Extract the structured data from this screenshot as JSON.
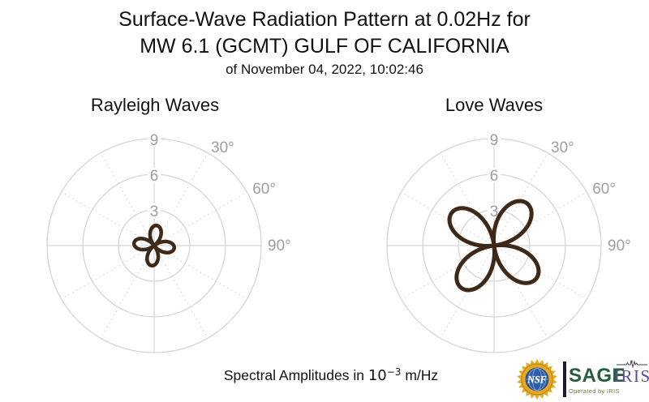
{
  "header": {
    "title_line1": "Surface-Wave Radiation Pattern at 0.02Hz for",
    "title_line2": "MW 6.1 (GCMT) GULF OF CALIFORNIA",
    "title_line3": "of November 04, 2022, 10:02:46"
  },
  "caption": {
    "prefix": "Spectral Amplitudes in ",
    "base": "10",
    "exponent": "−3",
    "suffix": " m/Hz"
  },
  "logos": {
    "nsf_label": "NSF",
    "sage_label": "SAGE",
    "sage_sub": "Operated by IRIS",
    "iris_label": "IRIS"
  },
  "colors": {
    "pattern_stroke": "#3E2817",
    "grid": "#d5d5d5",
    "tick_labels": "#9e9e9e",
    "title_text": "#111111",
    "nsf_gold": "#e7a922",
    "nsf_globe_blue": "#2f5ea9",
    "separator_navy": "#171c33",
    "sage_green": "#265c41",
    "operated_olive": "#6e7f3e",
    "iris_purple": "#5b4b97",
    "seismogram_line": "#3a3a4a"
  },
  "chart_data": [
    {
      "type": "polar-line",
      "title": "Rayleigh Waves",
      "radial_ticks": [
        3,
        6,
        9
      ],
      "radial_max": 9,
      "radial_units": "10^-3 m/Hz",
      "angle_tick_labels": [
        {
          "azimuth_deg": 30,
          "label": "30°"
        },
        {
          "azimuth_deg": 60,
          "label": "60°"
        },
        {
          "azimuth_deg": 90,
          "label": "90°"
        }
      ],
      "spoke_step_deg": 30,
      "grid": true,
      "pattern": {
        "shape": "four-lobe rose",
        "formula": "r(θ) = max_amplitude · |cos(2(θ − lobe0))|",
        "lobe0_deg": 7,
        "lobe_azimuths_deg": [
          7,
          97,
          187,
          277
        ],
        "max_amplitude": 1.7,
        "stroke_width": 4.5
      }
    },
    {
      "type": "polar-line",
      "title": "Love Waves",
      "radial_ticks": [
        3,
        6,
        9
      ],
      "radial_max": 9,
      "radial_units": "10^-3 m/Hz",
      "angle_tick_labels": [
        {
          "azimuth_deg": 30,
          "label": "30°"
        },
        {
          "azimuth_deg": 60,
          "label": "60°"
        },
        {
          "azimuth_deg": 90,
          "label": "90°"
        }
      ],
      "spoke_step_deg": 30,
      "grid": true,
      "pattern": {
        "shape": "four-lobe rose",
        "formula": "r(θ) = max_amplitude · |cos(2(θ − lobe0))|",
        "lobe0_deg": 38,
        "lobe_azimuths_deg": [
          38,
          128,
          218,
          308
        ],
        "max_amplitude": 4.5,
        "stroke_width": 5
      }
    }
  ]
}
